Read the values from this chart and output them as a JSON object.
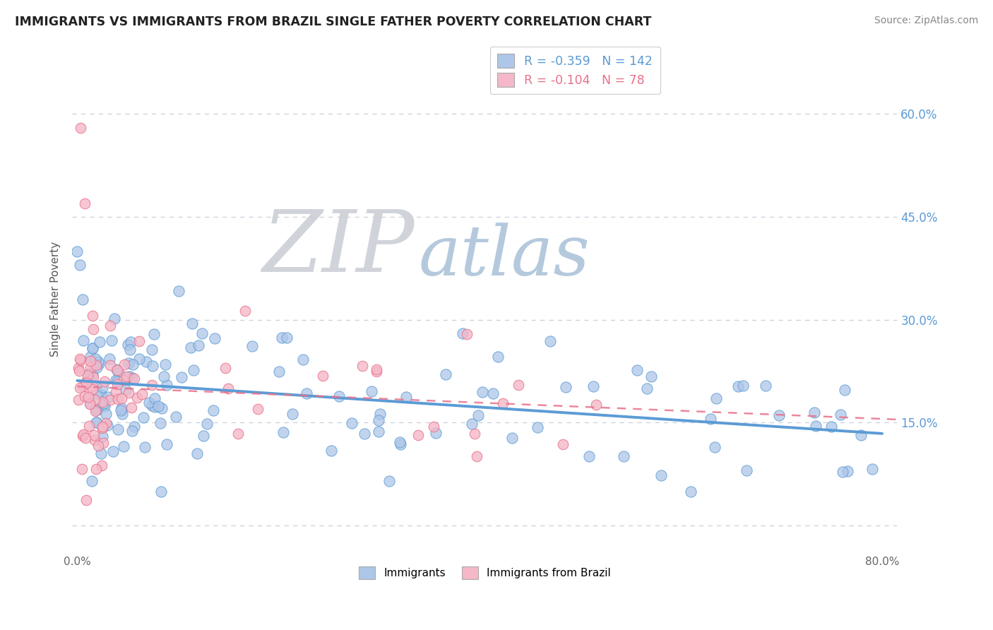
{
  "title": "IMMIGRANTS VS IMMIGRANTS FROM BRAZIL SINGLE FATHER POVERTY CORRELATION CHART",
  "source": "Source: ZipAtlas.com",
  "ylabel": "Single Father Poverty",
  "xlim": [
    -0.005,
    0.815
  ],
  "ylim": [
    -0.04,
    0.7
  ],
  "xticks": [
    0.0,
    0.1,
    0.2,
    0.3,
    0.4,
    0.5,
    0.6,
    0.7,
    0.8
  ],
  "xticklabels": [
    "0.0%",
    "",
    "",
    "",
    "",
    "",
    "",
    "",
    "80.0%"
  ],
  "yticks": [
    0.0,
    0.15,
    0.3,
    0.45,
    0.6
  ],
  "yticklabels": [
    "",
    "15.0%",
    "30.0%",
    "45.0%",
    "60.0%"
  ],
  "background_color": "#ffffff",
  "legend": {
    "R1": "-0.359",
    "N1": "142",
    "R2": "-0.104",
    "N2": "78",
    "color1": "#aec6e8",
    "color2": "#f4b8c8"
  },
  "blue_color": "#5b9bd5",
  "pink_color": "#e8728a",
  "blue_marker": "#aec6e8",
  "pink_marker": "#f4b8c8",
  "title_color": "#222222",
  "source_color": "#888888",
  "tick_color": "#666666",
  "ylabel_color": "#555555",
  "grid_color": "#c8d0dc",
  "right_tick_color": "#5b9bd5",
  "watermark_zip_color": "#c8cdd4",
  "watermark_atlas_color": "#a8c0d8"
}
